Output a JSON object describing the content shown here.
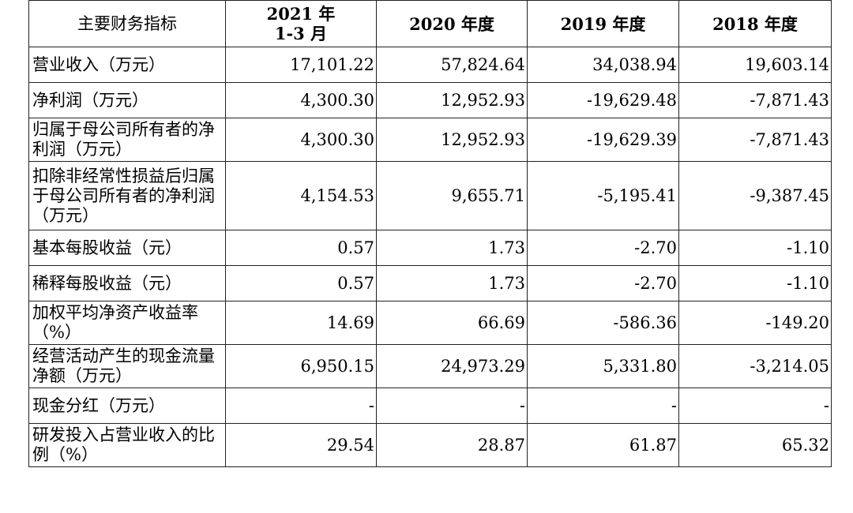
{
  "table": {
    "headers": {
      "metric": "主要财务指标",
      "period1_line1": "2021 年",
      "period1_line2": "1-3 月",
      "period2": "2020 年度",
      "period3": "2019 年度",
      "period4": "2018 年度"
    },
    "rows": [
      {
        "label": "营业收入（万元）",
        "v1": "17,101.22",
        "v2": "57,824.64",
        "v3": "34,038.94",
        "v4": "19,603.14"
      },
      {
        "label": "净利润（万元）",
        "v1": "4,300.30",
        "v2": "12,952.93",
        "v3": "-19,629.48",
        "v4": "-7,871.43"
      },
      {
        "label": "归属于母公司所有者的净利润（万元）",
        "v1": "4,300.30",
        "v2": "12,952.93",
        "v3": "-19,629.39",
        "v4": "-7,871.43"
      },
      {
        "label": "扣除非经常性损益后归属于母公司所有者的净利润（万元）",
        "v1": "4,154.53",
        "v2": "9,655.71",
        "v3": "-5,195.41",
        "v4": "-9,387.45"
      },
      {
        "label": "基本每股收益（元）",
        "v1": "0.57",
        "v2": "1.73",
        "v3": "-2.70",
        "v4": "-1.10"
      },
      {
        "label": "稀释每股收益（元）",
        "v1": "0.57",
        "v2": "1.73",
        "v3": "-2.70",
        "v4": "-1.10"
      },
      {
        "label": "加权平均净资产收益率（%）",
        "v1": "14.69",
        "v2": "66.69",
        "v3": "-586.36",
        "v4": "-149.20"
      },
      {
        "label": "经营活动产生的现金流量净额（万元）",
        "v1": "6,950.15",
        "v2": "24,973.29",
        "v3": "5,331.80",
        "v4": "-3,214.05"
      },
      {
        "label": "现金分红（万元）",
        "v1": "-",
        "v2": "-",
        "v3": "-",
        "v4": "-"
      },
      {
        "label": "研发投入占营业收入的比例（%）",
        "v1": "29.54",
        "v2": "28.87",
        "v3": "61.87",
        "v4": "65.32"
      }
    ]
  }
}
